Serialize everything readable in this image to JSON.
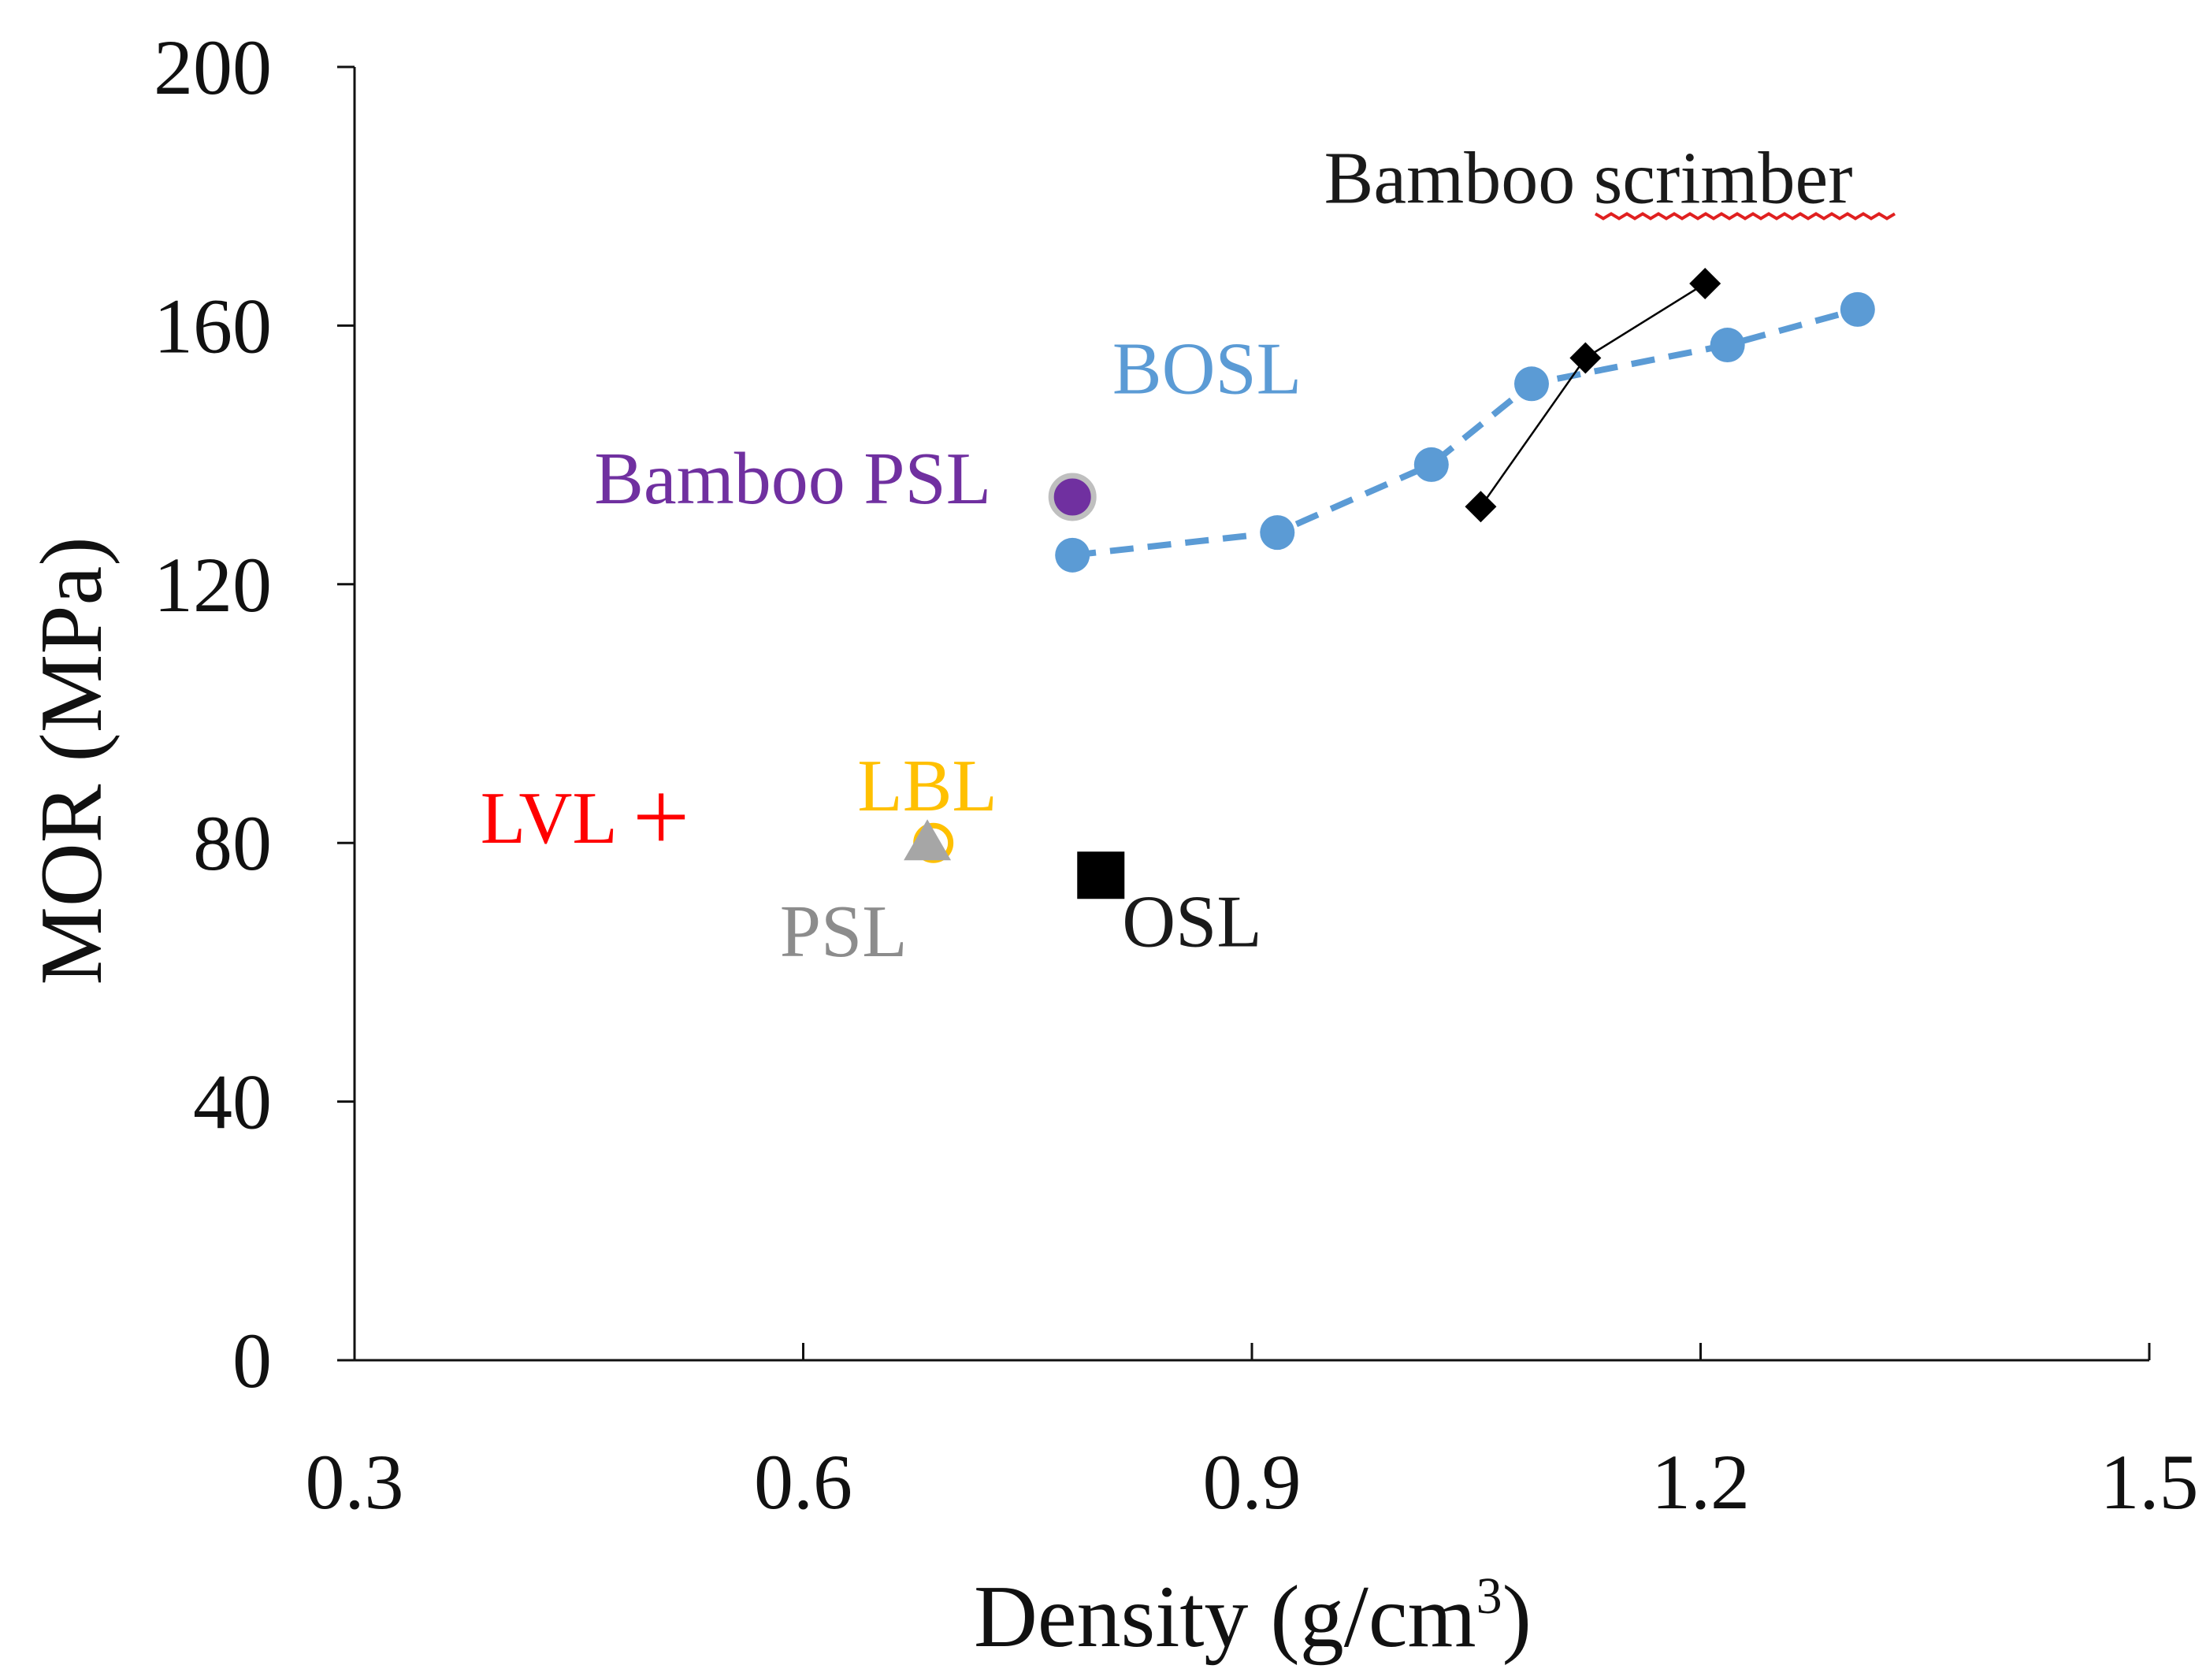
{
  "chart_data": {
    "type": "scatter",
    "title": "",
    "xlabel_main": "Density (g/cm",
    "xlabel_sup": "3",
    "xlabel_close": ")",
    "ylabel": "MOR (MPa)",
    "xlim": [
      0.3,
      1.5
    ],
    "ylim": [
      0,
      200
    ],
    "grid": false,
    "xticks": [
      {
        "value": 0.3,
        "label": "0.3"
      },
      {
        "value": 0.6,
        "label": "0.6"
      },
      {
        "value": 0.9,
        "label": "0.9"
      },
      {
        "value": 1.2,
        "label": "1.2"
      },
      {
        "value": 1.5,
        "label": "1.5"
      }
    ],
    "yticks": [
      {
        "value": 0,
        "label": "0"
      },
      {
        "value": 40,
        "label": "40"
      },
      {
        "value": 80,
        "label": "80"
      },
      {
        "value": 120,
        "label": "120"
      },
      {
        "value": 160,
        "label": "160"
      },
      {
        "value": 200,
        "label": "200"
      }
    ],
    "series": [
      {
        "name": "BOSL",
        "marker": "circle",
        "line": "dashed",
        "color": "#5b9bd5",
        "x": [
          0.78,
          0.917,
          1.02,
          1.087,
          1.218,
          1.305
        ],
        "y": [
          124.5,
          128,
          138.5,
          151,
          157,
          162.5
        ]
      },
      {
        "name": "Bamboo scrimber",
        "marker": "diamond",
        "line": "solid-thin",
        "color": "#000000",
        "x": [
          1.053,
          1.123,
          1.203
        ],
        "y": [
          132,
          155,
          166.5
        ]
      },
      {
        "name": "Bamboo PSL",
        "marker": "circle-large",
        "color": "#7030a0",
        "x": [
          0.78
        ],
        "y": [
          133.5
        ]
      },
      {
        "name": "LVL",
        "marker": "plus",
        "color": "#ff0000",
        "x": [
          0.505
        ],
        "y": [
          84
        ]
      },
      {
        "name": "LBL",
        "marker": "open-circle",
        "color": "#ffc000",
        "x": [
          0.687
        ],
        "y": [
          80
        ]
      },
      {
        "name": "PSL",
        "marker": "triangle",
        "color": "#a6a6a6",
        "x": [
          0.683
        ],
        "y": [
          80
        ]
      },
      {
        "name": "OSL",
        "marker": "square",
        "color": "#000000",
        "x": [
          0.799
        ],
        "y": [
          75
        ]
      }
    ],
    "annotations": [
      {
        "text": "Bamboo scrimber",
        "color": "#1a1a1a",
        "x": 1.125,
        "y": 179,
        "anchor": "middle"
      },
      {
        "text": "BOSL",
        "color": "#5b9bd5",
        "x": 0.87,
        "y": 149.5,
        "anchor": "middle"
      },
      {
        "text": "Bamboo PSL",
        "color": "#7030a0",
        "x": 0.593,
        "y": 132.5,
        "anchor": "middle"
      },
      {
        "text": "LBL",
        "color": "#ffc000",
        "x": 0.683,
        "y": 85,
        "anchor": "middle"
      },
      {
        "text": "LVL",
        "color": "#ff0000",
        "x": 0.43,
        "y": 80,
        "anchor": "middle"
      },
      {
        "text": "PSL",
        "color": "#8c8c8c",
        "x": 0.627,
        "y": 62.5,
        "anchor": "middle"
      },
      {
        "text": "OSL",
        "color": "#1a1a1a",
        "x": 0.86,
        "y": 64,
        "anchor": "middle"
      }
    ]
  }
}
